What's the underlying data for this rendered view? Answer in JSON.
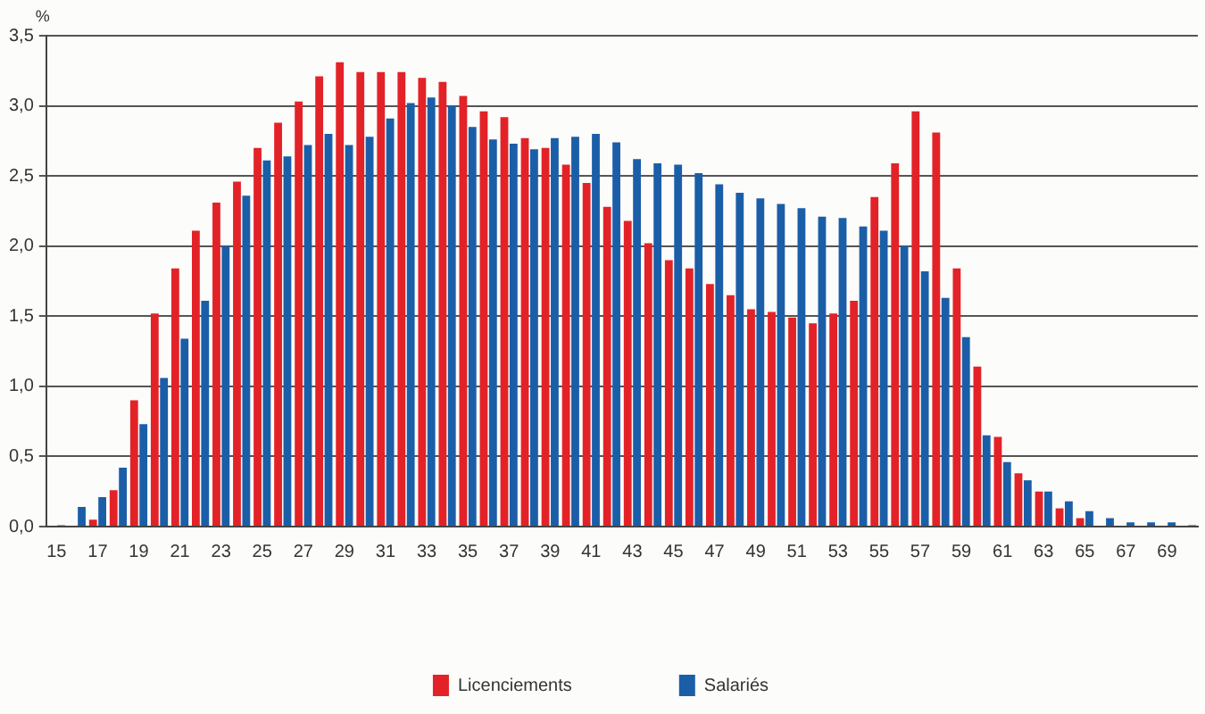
{
  "chart_data": {
    "type": "bar",
    "ylabel": "%",
    "categories": [
      "15",
      null,
      "17",
      null,
      "19",
      null,
      "21",
      null,
      "23",
      null,
      "25",
      null,
      "27",
      null,
      "29",
      null,
      "31",
      null,
      "33",
      null,
      "35",
      null,
      "37",
      null,
      "39",
      null,
      "41",
      null,
      "43",
      null,
      "45",
      null,
      "47",
      null,
      "49",
      null,
      "51",
      null,
      "53",
      null,
      "55",
      null,
      "57",
      null,
      "59",
      null,
      "61",
      null,
      "63",
      null,
      "65",
      null,
      "67",
      null,
      "69",
      null
    ],
    "series": [
      {
        "name": "Licenciements",
        "color": "#e32228",
        "values": [
          0,
          0,
          0.05,
          0.26,
          0.9,
          1.52,
          1.84,
          2.11,
          2.31,
          2.46,
          2.7,
          2.88,
          3.03,
          3.21,
          3.31,
          3.24,
          3.24,
          3.24,
          3.2,
          3.17,
          3.07,
          2.96,
          2.92,
          2.77,
          2.7,
          2.58,
          2.45,
          2.28,
          2.18,
          2.02,
          1.9,
          1.84,
          1.73,
          1.65,
          1.55,
          1.53,
          1.49,
          1.45,
          1.52,
          1.61,
          2.35,
          2.59,
          2.96,
          2.81,
          1.84,
          1.14,
          0.64,
          0.38,
          0.25,
          0.13,
          0.06,
          0,
          0,
          0,
          0,
          0
        ]
      },
      {
        "name": "Salariés",
        "color": "#1b5ea8",
        "values": [
          0.01,
          0.14,
          0.21,
          0.42,
          0.73,
          1.06,
          1.34,
          1.61,
          2.0,
          2.36,
          2.61,
          2.64,
          2.72,
          2.8,
          2.72,
          2.78,
          2.91,
          3.02,
          3.06,
          3.0,
          2.85,
          2.76,
          2.73,
          2.69,
          2.77,
          2.78,
          2.8,
          2.74,
          2.62,
          2.59,
          2.58,
          2.52,
          2.44,
          2.38,
          2.34,
          2.3,
          2.27,
          2.21,
          2.2,
          2.14,
          2.11,
          2.0,
          1.82,
          1.63,
          1.35,
          0.65,
          0.46,
          0.33,
          0.25,
          0.18,
          0.11,
          0.06,
          0.03,
          0.03,
          0.03,
          0.01
        ]
      }
    ],
    "ylim": [
      0,
      3.5
    ],
    "yticks": [
      {
        "value": 0,
        "label": "0,0"
      },
      {
        "value": 0.5,
        "label": "0,5"
      },
      {
        "value": 1,
        "label": "1,0"
      },
      {
        "value": 1.5,
        "label": "1,5"
      },
      {
        "value": 2,
        "label": "2,0"
      },
      {
        "value": 2.5,
        "label": "2,5"
      },
      {
        "value": 3,
        "label": "3,0"
      },
      {
        "value": 3.5,
        "label": "3,5"
      }
    ],
    "grid": "y",
    "legend": "bottom"
  }
}
